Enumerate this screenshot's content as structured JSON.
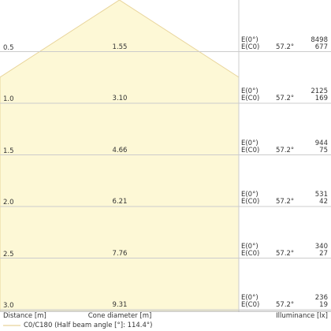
{
  "chart_data": {
    "type": "cone",
    "unit_distance": "m",
    "labels": {
      "distance": "Distance [m]",
      "cone_diameter": "Cone diameter [m]",
      "illuminance": "Illuminance [lx]",
      "legend": "C0/C180 (Half beam angle [°]: 114.4°)",
      "e0": "E(0°)",
      "ec0": "E(C0)"
    },
    "rows": [
      {
        "distance": "0.5",
        "diameter": "1.55",
        "angle": "57.2°",
        "e0": "8498",
        "ec0": "677"
      },
      {
        "distance": "1.0",
        "diameter": "3.10",
        "angle": "57.2°",
        "e0": "2125",
        "ec0": "169"
      },
      {
        "distance": "1.5",
        "diameter": "4.66",
        "angle": "57.2°",
        "e0": "944",
        "ec0": "75"
      },
      {
        "distance": "2.0",
        "diameter": "6.21",
        "angle": "57.2°",
        "e0": "531",
        "ec0": "42"
      },
      {
        "distance": "2.5",
        "diameter": "7.76",
        "angle": "57.2°",
        "e0": "340",
        "ec0": "27"
      },
      {
        "distance": "3.0",
        "diameter": "9.31",
        "angle": "57.2°",
        "e0": "236",
        "ec0": "19"
      }
    ],
    "colors": {
      "cone_fill": "#fdf8d6",
      "cone_edge": "#e8d49a",
      "gridline": "#cccccc",
      "text": "#333333"
    }
  }
}
